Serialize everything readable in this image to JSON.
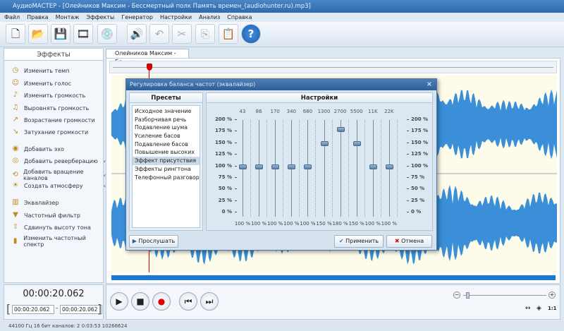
{
  "window": {
    "title": "АудиоМАСТЕР - [Олейников Максим - Бессмертный полк Память времен_(audiohunter.ru).mp3]"
  },
  "menu": [
    "Файл",
    "Правка",
    "Монтаж",
    "Эффекты",
    "Генератор",
    "Настройки",
    "Анализ",
    "Справка"
  ],
  "toolbar": [
    {
      "icon": "new-file-icon",
      "glyph": "🗋"
    },
    {
      "icon": "open-folder-icon",
      "glyph": "📂"
    },
    {
      "icon": "save-icon",
      "glyph": "💾"
    },
    {
      "icon": "add-video-icon",
      "glyph": "🎞"
    },
    {
      "icon": "add-cd-icon",
      "glyph": "💿"
    },
    {
      "icon": "speaker-icon",
      "glyph": "🔊"
    },
    {
      "icon": "undo-icon",
      "glyph": "↶"
    },
    {
      "icon": "cut-icon",
      "glyph": "✂"
    },
    {
      "icon": "copy-icon",
      "glyph": "⎘"
    },
    {
      "icon": "paste-icon",
      "glyph": "📋"
    },
    {
      "icon": "help-icon",
      "glyph": "?"
    }
  ],
  "left_panel": {
    "title": "Эффекты",
    "items": [
      {
        "label": "Изменить темп",
        "glyph": "◷"
      },
      {
        "label": "Изменить голос",
        "glyph": "☺"
      },
      {
        "label": "Изменить громкость",
        "glyph": "♪"
      },
      {
        "label": "Выровнять громкость",
        "glyph": "♫"
      },
      {
        "label": "Возрастание громкости",
        "glyph": "↗"
      },
      {
        "label": "Затухание громкости",
        "glyph": "↘"
      },
      {
        "label": "Добавить эхо",
        "glyph": "◉"
      },
      {
        "label": "Добавить реверберацию",
        "glyph": "◎",
        "arrow": "‹"
      },
      {
        "label": "Добавить вращение каналов",
        "glyph": "⟲",
        "arrow": "‹"
      },
      {
        "label": "Создать атмосферу",
        "glyph": "☀",
        "arrow": "‹"
      },
      {
        "label": "Эквалайзер",
        "glyph": "▥"
      },
      {
        "label": "Частотный фильтр",
        "glyph": "▼"
      },
      {
        "label": "Сдвинуть высоту тона",
        "glyph": "⇧"
      },
      {
        "label": "Изменить частотный спектр",
        "glyph": "▮"
      }
    ]
  },
  "tab": {
    "label": "Олейников Максим - Бе...",
    "close": "×"
  },
  "dialog": {
    "title": "Регулировка баланса частот (эквалайзер)",
    "close": "×",
    "presets_title": "Пресеты",
    "settings_title": "Настройки",
    "presets": [
      "Исходное значение",
      "Разборчивая речь",
      "Подавление шума",
      "Усиление басов",
      "Подавление басов",
      "Повышение высоких",
      "Эффект присутствия",
      "Эффекты рингтона",
      "Телефонный разговор"
    ],
    "selected_preset": "Эффект присутствия",
    "scale": [
      "200 %",
      "175 %",
      "150 %",
      "125 %",
      "100 %",
      "75 %",
      "50 %",
      "25 %",
      "0 %"
    ],
    "bands": [
      {
        "freq": "43",
        "value": 100,
        "label": "100 %"
      },
      {
        "freq": "86",
        "value": 100,
        "label": "100 %"
      },
      {
        "freq": "170",
        "value": 100,
        "label": "100 %"
      },
      {
        "freq": "340",
        "value": 100,
        "label": "100 %"
      },
      {
        "freq": "680",
        "value": 100,
        "label": "100 %"
      },
      {
        "freq": "1300",
        "value": 150,
        "label": "150 %"
      },
      {
        "freq": "2700",
        "value": 180,
        "label": "180 %"
      },
      {
        "freq": "5500",
        "value": 150,
        "label": "150 %"
      },
      {
        "freq": "11K",
        "value": 100,
        "label": "100 %"
      },
      {
        "freq": "22K",
        "value": 100,
        "label": "100 %"
      }
    ],
    "listen": "Прослушать",
    "apply": "Применить",
    "cancel": "Отмена"
  },
  "transport": {
    "time": "00:00:20.062",
    "sel_start": "00:00:20.062",
    "sel_end": "00:00:20.062",
    "dash": "-"
  },
  "status": "44100 Гц  16 бит  каналов: 2   0:03:53  10266624",
  "colors": {
    "wave": "#3a8fd8",
    "titlebar": "#3a74b4",
    "playhead": "#cc0000"
  }
}
